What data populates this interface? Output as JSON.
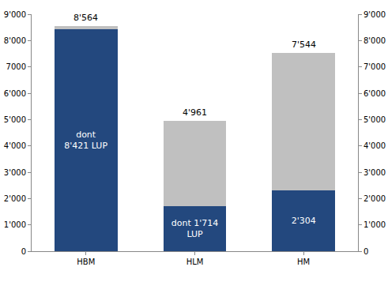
{
  "chart_data": {
    "type": "bar",
    "stacked": true,
    "grid": false,
    "data_labels": true,
    "categories": [
      "HBM",
      "HLM",
      "HM"
    ],
    "series": [
      {
        "color": "#23487e",
        "values": [
          8421,
          1714,
          2304
        ],
        "value_labels": [
          "dont\n8'421 LUP",
          "dont 1'714\nLUP",
          "2'304"
        ]
      },
      {
        "color": "#c0c0c0",
        "values": [
          143,
          3247,
          5240
        ]
      }
    ],
    "annotations": [
      {
        "category": "HBM",
        "value": 8564,
        "text": "8'564"
      },
      {
        "category": "HLM",
        "value": 4961,
        "text": "4'961"
      },
      {
        "category": "HM",
        "value": 7544,
        "text": "7'544"
      }
    ],
    "ylim": [
      0,
      9000
    ],
    "yticks": [
      0,
      {
        "value": 1000,
        "label": "1'000"
      },
      {
        "value": 2000,
        "label": "2'000"
      },
      {
        "value": 3000,
        "label": "3'000"
      },
      {
        "value": 4000,
        "label": "4'000"
      },
      {
        "value": 5000,
        "label": "5'000"
      },
      {
        "value": 6000,
        "label": "6'000"
      },
      7000,
      {
        "value": 8000,
        "label": "8'000"
      },
      {
        "value": 9000,
        "label": "9'000"
      }
    ],
    "y2lim": [
      0,
      9000
    ],
    "y2ticks": [
      0,
      {
        "value": 1000,
        "label": "1'000"
      },
      {
        "value": 2000,
        "label": "2'000"
      },
      {
        "value": 3000,
        "label": "3'000"
      },
      {
        "value": 4000,
        "label": "4'000"
      },
      {
        "value": 5000,
        "label": "5'000"
      },
      {
        "value": 6000,
        "label": "6'000"
      },
      {
        "value": 7000,
        "label": "7'000"
      },
      {
        "value": 8000,
        "label": "8'000"
      },
      {
        "value": 9000,
        "label": "9'000"
      }
    ]
  }
}
